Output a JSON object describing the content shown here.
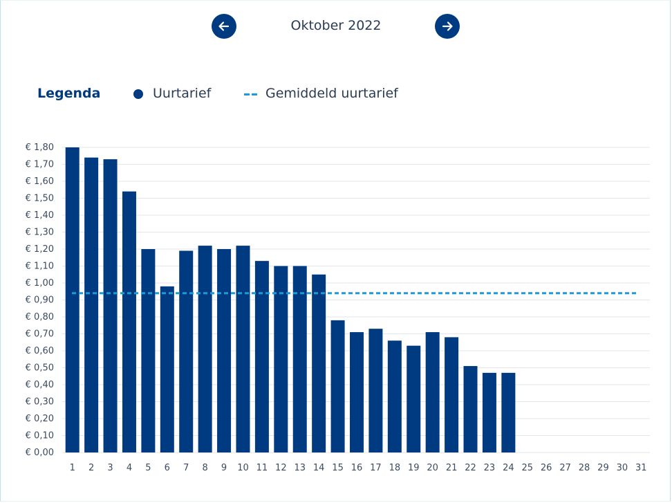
{
  "header": {
    "month_label": "Oktober 2022",
    "prev_icon": "arrow-left-icon",
    "next_icon": "arrow-right-icon"
  },
  "legend": {
    "title": "Legenda",
    "items": [
      {
        "label": "Uurtarief",
        "marker": "dot",
        "color": "#003a80"
      },
      {
        "label": "Gemiddeld uurtarief",
        "marker": "dashed-line",
        "color": "#1e9ad6"
      }
    ]
  },
  "chart_data": {
    "type": "bar",
    "categories": [
      "1",
      "2",
      "3",
      "4",
      "5",
      "6",
      "7",
      "8",
      "9",
      "10",
      "11",
      "12",
      "13",
      "14",
      "15",
      "16",
      "17",
      "18",
      "19",
      "20",
      "21",
      "22",
      "23",
      "24",
      "25",
      "26",
      "27",
      "28",
      "29",
      "30",
      "31"
    ],
    "series": [
      {
        "name": "Uurtarief",
        "color": "#003a80",
        "values": [
          1.8,
          1.74,
          1.73,
          1.54,
          1.2,
          0.98,
          1.19,
          1.22,
          1.2,
          1.22,
          1.13,
          1.1,
          1.1,
          1.05,
          0.78,
          0.71,
          0.73,
          0.66,
          0.63,
          0.71,
          0.68,
          0.51,
          0.47,
          0.47,
          null,
          null,
          null,
          null,
          null,
          null,
          null
        ]
      }
    ],
    "average": {
      "name": "Gemiddeld uurtarief",
      "value": 0.94,
      "color": "#1e9ad6",
      "style": "dashed"
    },
    "ylim": [
      0,
      1.8
    ],
    "ytick_step": 0.1,
    "ytick_labels": [
      "€ 0,00",
      "€ 0,10",
      "€ 0,20",
      "€ 0,30",
      "€ 0,40",
      "€ 0,50",
      "€ 0,60",
      "€ 0,70",
      "€ 0,80",
      "€ 0,90",
      "€ 1,00",
      "€ 1,10",
      "€ 1,20",
      "€ 1,30",
      "€ 1,40",
      "€ 1,50",
      "€ 1,60",
      "€ 1,70",
      "€ 1,80"
    ],
    "grid": true,
    "xlabel": "",
    "ylabel": ""
  }
}
